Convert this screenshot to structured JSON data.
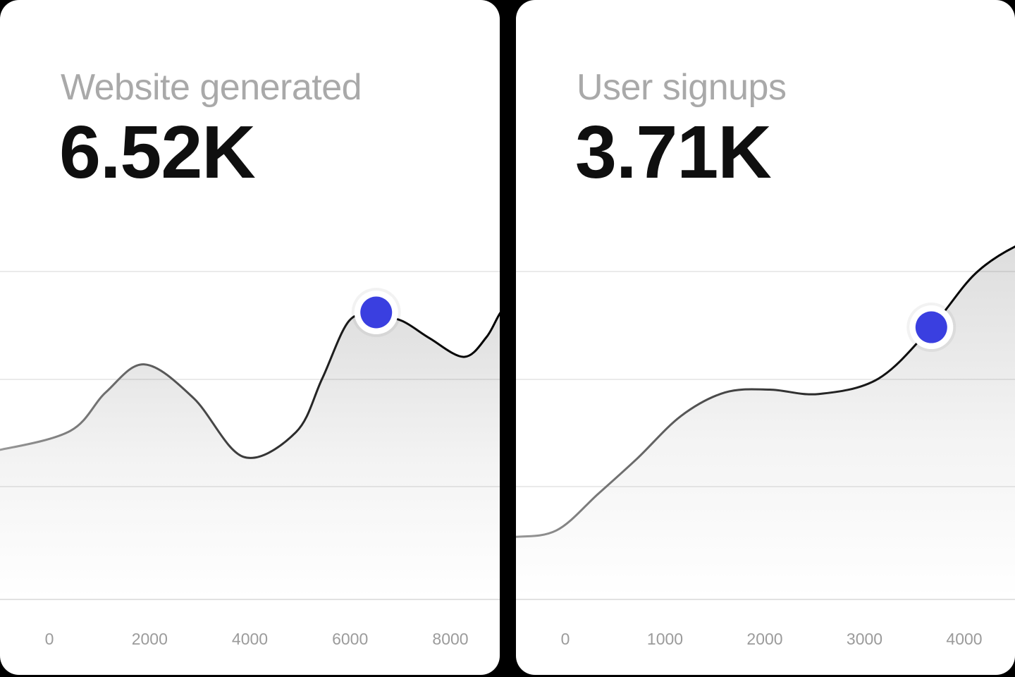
{
  "page": {
    "background_color": "#000000",
    "card_color": "#ffffff",
    "accent_color": "#3A3FE0"
  },
  "chart_data": [
    {
      "type": "area",
      "title": "Website generated",
      "headline_value": "6.52K",
      "unit": "K",
      "x_tick_labels": [
        "0",
        "2000",
        "4000",
        "6000",
        "8000"
      ],
      "x_ticks": [
        0,
        2000,
        4000,
        6000,
        8000
      ],
      "x_range": [
        -1600,
        9400
      ],
      "y_range": [
        0,
        7.45
      ],
      "grid": "horizontal-only",
      "legend": "none",
      "line_color_start": "#989898",
      "line_color_end": "#000000",
      "fill_style": "gray-fade-down",
      "accent": "#3A3FE0",
      "marker": {
        "x": 6520,
        "y": 6.52
      },
      "series": [
        {
          "name": "Website generated",
          "points": [
            [
              -1600,
              3.36
            ],
            [
              -980,
              3.4
            ],
            [
              420,
              3.83
            ],
            [
              1130,
              4.71
            ],
            [
              1900,
              5.34
            ],
            [
              2880,
              4.57
            ],
            [
              3870,
              3.24
            ],
            [
              4920,
              3.8
            ],
            [
              5440,
              5.01
            ],
            [
              5980,
              6.33
            ],
            [
              6510,
              6.44
            ],
            [
              7030,
              6.33
            ],
            [
              7590,
              5.93
            ],
            [
              8270,
              5.51
            ],
            [
              8720,
              5.96
            ],
            [
              9030,
              6.57
            ],
            [
              9400,
              6.95
            ]
          ]
        }
      ]
    },
    {
      "type": "area",
      "title": "User signups",
      "headline_value": "3.71K",
      "unit": "K",
      "x_tick_labels": [
        "0",
        "1000",
        "2000",
        "3000",
        "4000"
      ],
      "x_ticks": [
        0,
        1000,
        2000,
        3000,
        4000
      ],
      "x_range": [
        -1000,
        4850
      ],
      "y_range": [
        0,
        4.47
      ],
      "grid": "horizontal-only",
      "legend": "none",
      "line_color_start": "#989898",
      "line_color_end": "#000000",
      "fill_style": "gray-fade-down",
      "accent": "#3A3FE0",
      "marker": {
        "x": 3670,
        "y": 3.71
      },
      "series": [
        {
          "name": "User signups",
          "points": [
            [
              -1000,
              0.84
            ],
            [
              -540,
              0.85
            ],
            [
              -90,
              0.94
            ],
            [
              330,
              1.44
            ],
            [
              720,
              1.92
            ],
            [
              1160,
              2.5
            ],
            [
              1600,
              2.82
            ],
            [
              2050,
              2.86
            ],
            [
              2540,
              2.8
            ],
            [
              3140,
              3.01
            ],
            [
              3670,
              3.71
            ],
            [
              4110,
              4.44
            ],
            [
              4540,
              4.83
            ],
            [
              4850,
              4.93
            ]
          ]
        }
      ]
    }
  ]
}
